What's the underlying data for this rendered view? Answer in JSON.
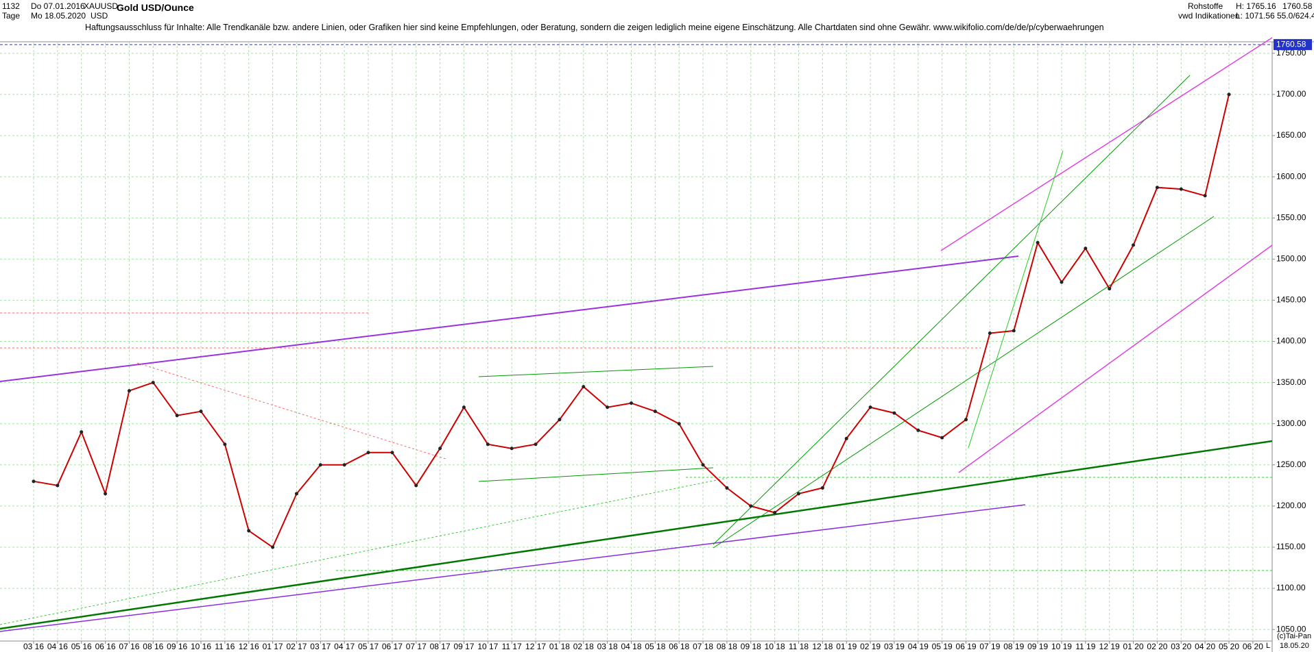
{
  "header": {
    "count": "1132",
    "start_date": "Do 07.01.2016",
    "symbol": "XAUUSD",
    "period": "Tage",
    "end_date": "Mo 18.05.2020",
    "currency": "USD",
    "title": "Gold USD/Ounce",
    "disclaimer": "Haftungsausschluss für Inhalte: Alle Trendkanäle bzw. andere Linien, oder Grafiken hier sind keine Empfehlungen, oder Beratung, sondern die zeigen lediglich meine eigene Einschätzung. Alle Chartdaten sind ohne Gewähr.  www.wikifolio.com/de/de/p/cyberwaehrungen",
    "group": "Rohstoffe",
    "source": "vwd Indikationen",
    "high": "H: 1765.16",
    "low": "L: 1071.56",
    "last": "1760.58",
    "scale": "55.0/624.4"
  },
  "footer": {
    "copyright": "(c)Tai-Pan",
    "date": "18.05.20",
    "marker": "L"
  },
  "chart_data": {
    "type": "line",
    "color": "#cc0000",
    "categories": [
      "03 16",
      "04 16",
      "05 16",
      "06 16",
      "07 16",
      "08 16",
      "09 16",
      "10 16",
      "11 16",
      "12 16",
      "01 17",
      "02 17",
      "03 17",
      "04 17",
      "05 17",
      "06 17",
      "07 17",
      "08 17",
      "09 17",
      "10 17",
      "11 17",
      "12 17",
      "01 18",
      "02 18",
      "03 18",
      "04 18",
      "05 18",
      "06 18",
      "07 18",
      "08 18",
      "09 18",
      "10 18",
      "11 18",
      "12 18",
      "01 19",
      "02 19",
      "03 19",
      "04 19",
      "05 19",
      "06 19",
      "07 19",
      "08 19",
      "09 19",
      "10 19",
      "11 19",
      "12 19",
      "01 20",
      "02 20",
      "03 20",
      "04 20",
      "05 20",
      "06 20"
    ],
    "values": [
      1230,
      1225,
      1290,
      1215,
      1340,
      1350,
      1310,
      1315,
      1275,
      1170,
      1150,
      1215,
      1250,
      1250,
      1265,
      1265,
      1225,
      1270,
      1320,
      1275,
      1270,
      1275,
      1305,
      1345,
      1320,
      1325,
      1315,
      1300,
      1250,
      1222,
      1200,
      1192,
      1215,
      1222,
      1282,
      1320,
      1313,
      1292,
      1283,
      1305,
      1410,
      1413,
      1520,
      1472,
      1513,
      1464,
      1517,
      1587,
      1585,
      1577,
      1700,
      null
    ],
    "last_price": 1760.58,
    "ylim": [
      1036,
      1764
    ],
    "yticks": [
      {
        "value": 1050,
        "label": "1050.00"
      },
      {
        "value": 1100,
        "label": "1100.00"
      },
      {
        "value": 1150,
        "label": "1150.00"
      },
      {
        "value": 1200,
        "label": "1200.00"
      },
      {
        "value": 1250,
        "label": "1250.00"
      },
      {
        "value": 1300,
        "label": "1300.00"
      },
      {
        "value": 1350,
        "label": "1350.00"
      },
      {
        "value": 1400,
        "label": "1400.00"
      },
      {
        "value": 1450,
        "label": "1450.00"
      },
      {
        "value": 1500,
        "label": "1500.00"
      },
      {
        "value": 1550,
        "label": "1550.00"
      },
      {
        "value": 1600,
        "label": "1600.00"
      },
      {
        "value": 1650,
        "label": "1650.00"
      },
      {
        "value": 1700,
        "label": "1700.00"
      },
      {
        "value": 1750,
        "label": "1750.00"
      }
    ],
    "grid": true
  }
}
